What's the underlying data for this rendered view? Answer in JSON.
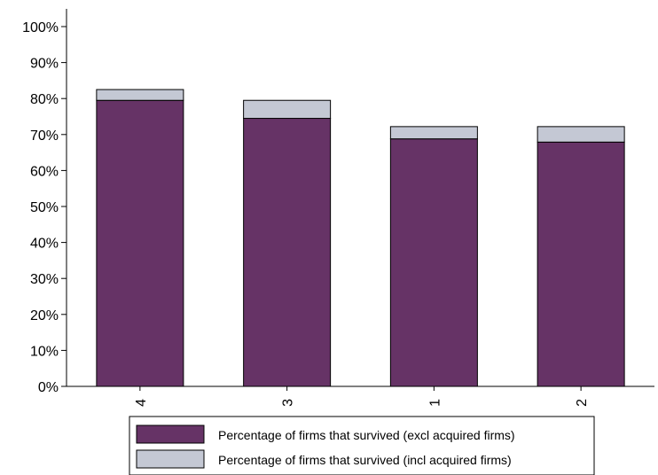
{
  "chart_data": {
    "type": "bar",
    "stacked": true,
    "categories": [
      "4",
      "3",
      "1",
      "2"
    ],
    "series": [
      {
        "name": "Percentage of firms that survived (excl acquired firms)",
        "values": [
          79.5,
          74.5,
          68.8,
          67.9
        ],
        "color": "#663366"
      },
      {
        "name": "Percentage of firms that survived (incl acquired firms)",
        "values": [
          3.0,
          5.0,
          3.4,
          4.3
        ],
        "color": "#c4c8d4"
      }
    ],
    "totals": [
      82.5,
      79.5,
      72.2,
      72.2
    ],
    "ylim": [
      0,
      100
    ],
    "yticks": [
      "0%",
      "10%",
      "20%",
      "30%",
      "40%",
      "50%",
      "60%",
      "70%",
      "80%",
      "90%",
      "100%"
    ],
    "ytick_values": [
      0,
      10,
      20,
      30,
      40,
      50,
      60,
      70,
      80,
      90,
      100
    ],
    "xtick_rotation": -90,
    "grid": false,
    "legend_position": "bottom"
  }
}
